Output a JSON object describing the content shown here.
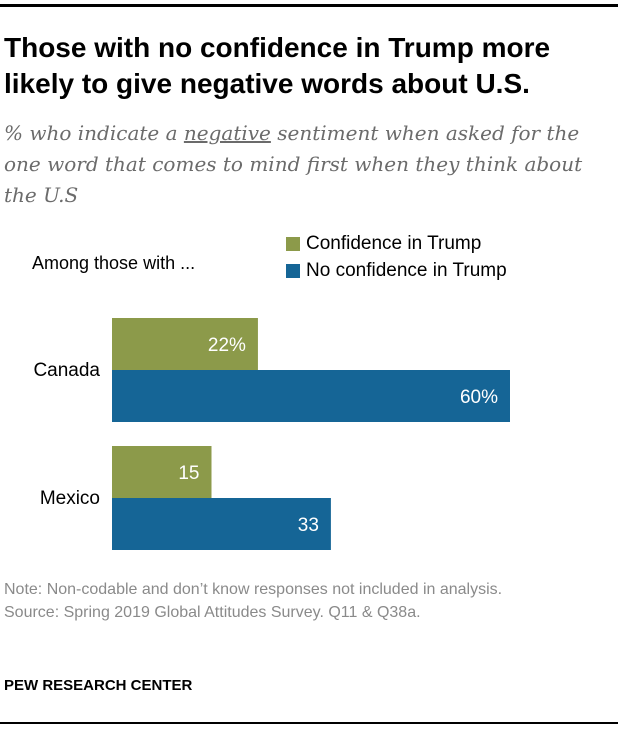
{
  "title": "Those with no confidence in Trump more likely to give negative words about U.S.",
  "subtitle": {
    "before": "% who indicate a ",
    "underlined": "negative",
    "after": " sentiment when asked for the one word that comes to mind first when they think about the U.S"
  },
  "among_label": "Among those with ...",
  "legend": [
    {
      "label": "Confidence in Trump",
      "color": "#8c9a4a"
    },
    {
      "label": "No confidence in Trump",
      "color": "#156596"
    }
  ],
  "chart_data": {
    "type": "bar",
    "orientation": "horizontal",
    "categories": [
      "Canada",
      "Mexico"
    ],
    "series": [
      {
        "name": "Confidence in Trump",
        "values": [
          22,
          15
        ],
        "labels": [
          "22%",
          "15"
        ],
        "color": "#8c9a4a"
      },
      {
        "name": "No confidence in Trump",
        "values": [
          60,
          33
        ],
        "labels": [
          "60%",
          "33"
        ],
        "color": "#156596"
      }
    ],
    "xlim": [
      0,
      60
    ]
  },
  "note": "Note: Non-codable and don’t know responses not included in analysis.",
  "source": "Source:  Spring 2019 Global Attitudes Survey. Q11 & Q38a.",
  "brand": "PEW RESEARCH CENTER"
}
